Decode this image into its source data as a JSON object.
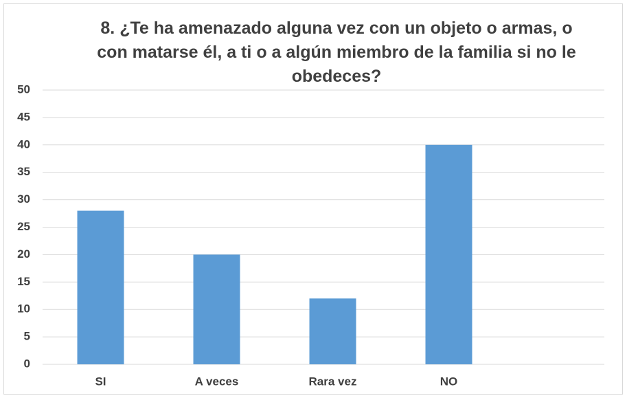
{
  "chart_data": {
    "type": "bar",
    "title": "8. ¿Te ha amenazado alguna vez con un objeto o armas, o con matarse él, a ti o a algún miembro de la familia si no le obedeces?",
    "categories": [
      "SI",
      "A veces",
      "Rara vez",
      "NO"
    ],
    "values": [
      28,
      20,
      12,
      40
    ],
    "color": "#5b9bd5",
    "ylim": [
      0,
      50
    ],
    "yticks": [
      0,
      5,
      10,
      15,
      20,
      25,
      30,
      35,
      40,
      45,
      50
    ],
    "grid": true
  }
}
